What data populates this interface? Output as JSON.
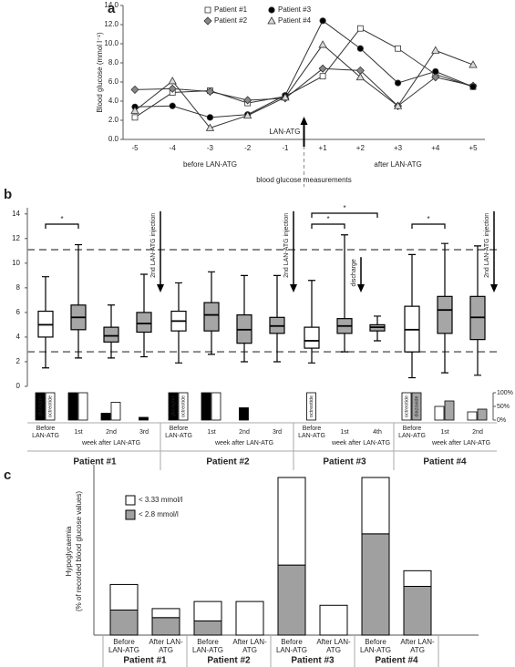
{
  "chart_data": [
    {
      "type": "line",
      "panel": "a",
      "ylabel": "Blood glucose (mmol l⁻¹)",
      "xlabel": "blood glucose measurements",
      "categories": [
        "-5",
        "-4",
        "-3",
        "-2",
        "-1",
        "+1",
        "+2",
        "+3",
        "+4",
        "+5"
      ],
      "phases": [
        "before LAN-ATG",
        "after LAN-ATG"
      ],
      "event": "LAN-ATG",
      "ylim": [
        0,
        14
      ],
      "yticks": [
        {
          "value": 0,
          "label": "0.0"
        },
        {
          "value": 2,
          "label": "2.0"
        },
        {
          "value": 4,
          "label": "4.0"
        },
        {
          "value": 6,
          "label": "6.0"
        },
        {
          "value": 8,
          "label": "8.0"
        },
        {
          "value": 10,
          "label": "10.0"
        },
        {
          "value": 12,
          "label": "12.0"
        },
        {
          "value": 14,
          "label": "14.0"
        }
      ],
      "grid": false,
      "legend": "top",
      "series": [
        {
          "name": "Patient #1",
          "marker": "square",
          "color": "#ffffff",
          "values": [
            2.3,
            4.9,
            5.1,
            3.8,
            4.5,
            6.6,
            11.6,
            9.5,
            6.8,
            5.5
          ]
        },
        {
          "name": "Patient #2",
          "marker": "diamond",
          "color": "#888888",
          "values": [
            5.2,
            5.3,
            5.0,
            4.1,
            4.3,
            7.4,
            7.2,
            3.5,
            6.5,
            5.6
          ]
        },
        {
          "name": "Patient #3",
          "marker": "circle",
          "color": "#000000",
          "values": [
            3.4,
            3.5,
            2.3,
            2.6,
            4.6,
            12.4,
            9.5,
            5.9,
            7.1,
            5.5
          ]
        },
        {
          "name": "Patient #4",
          "marker": "triangle",
          "color": "#d9d9d9",
          "values": [
            3.0,
            6.1,
            1.2,
            2.5,
            4.4,
            9.9,
            6.5,
            3.5,
            9.3,
            7.8
          ]
        }
      ]
    },
    {
      "type": "box",
      "panel": "b",
      "ylim": [
        0,
        14.5
      ],
      "yticks": [
        0,
        2,
        4,
        6,
        8,
        10,
        12,
        14
      ],
      "reference_lines": [
        11.1,
        2.8
      ],
      "groups": [
        {
          "name": "Patient #1",
          "categories": [
            "Before LAN-ATG",
            "1st",
            "2nd",
            "3rd"
          ],
          "period": "week after LAN-ATG",
          "boxes": [
            {
              "min": 1.5,
              "q1": 4.0,
              "median": 5.0,
              "q3": 6.1,
              "max": 8.9
            },
            {
              "min": 2.3,
              "q1": 4.6,
              "median": 5.6,
              "q3": 6.6,
              "max": 11.5
            },
            {
              "min": 2.3,
              "q1": 3.6,
              "median": 4.1,
              "q3": 4.8,
              "max": 6.6
            },
            {
              "min": 2.4,
              "q1": 4.4,
              "median": 5.1,
              "q3": 6.0,
              "max": 9.1
            }
          ],
          "significance": [
            {
              "label": "*",
              "between": [
                0,
                1
              ]
            }
          ],
          "events": [
            {
              "text": "2nd LAN-ATG injection",
              "after": 3
            }
          ]
        },
        {
          "name": "Patient #2",
          "categories": [
            "Before LAN-ATG",
            "1st",
            "2nd",
            "3rd"
          ],
          "period": "week after LAN-ATG",
          "boxes": [
            {
              "min": 1.9,
              "q1": 4.5,
              "median": 5.3,
              "q3": 6.1,
              "max": 8.4
            },
            {
              "min": 2.6,
              "q1": 4.5,
              "median": 5.8,
              "q3": 6.8,
              "max": 9.3
            },
            {
              "min": 2.0,
              "q1": 3.5,
              "median": 4.6,
              "q3": 5.8,
              "max": 9.0
            },
            {
              "min": 2.0,
              "q1": 4.3,
              "median": 4.9,
              "q3": 5.6,
              "max": 9.0
            }
          ],
          "significance": [],
          "events": [
            {
              "text": "2nd LAN-ATG injection",
              "after": 3
            }
          ]
        },
        {
          "name": "Patient #3",
          "categories": [
            "Before LAN-ATG",
            "1st",
            "4th"
          ],
          "period": "week after LAN-ATG",
          "boxes": [
            {
              "min": 1.9,
              "q1": 3.1,
              "median": 3.7,
              "q3": 4.8,
              "max": 8.6
            },
            {
              "min": 2.8,
              "q1": 4.3,
              "median": 4.9,
              "q3": 5.5,
              "max": 12.3
            },
            {
              "min": 3.7,
              "q1": 4.5,
              "median": 4.8,
              "q3": 5.0,
              "max": 5.7
            }
          ],
          "significance": [
            {
              "label": "*",
              "between": [
                0,
                1
              ]
            },
            {
              "label": "*",
              "between": [
                0,
                2
              ]
            }
          ],
          "events": [
            {
              "text": "discharge",
              "after": 1
            }
          ]
        },
        {
          "name": "Patient #4",
          "categories": [
            "Before LAN-ATG",
            "1st",
            "2nd"
          ],
          "period": "week after LAN-ATG",
          "boxes": [
            {
              "min": 0.7,
              "q1": 2.8,
              "median": 4.6,
              "q3": 6.5,
              "max": 10.7
            },
            {
              "min": 1.1,
              "q1": 4.3,
              "median": 6.2,
              "q3": 7.3,
              "max": 11.6
            },
            {
              "min": 0.9,
              "q1": 3.8,
              "median": 5.6,
              "q3": 7.3,
              "max": 11.4
            }
          ],
          "significance": [
            {
              "label": "*",
              "between": [
                0,
                1
              ]
            }
          ],
          "events": [
            {
              "text": "2nd LAN-ATG injection",
              "after": 2
            }
          ]
        }
      ],
      "treatment": {
        "y2lim": [
          0,
          100
        ],
        "y2ticks": [
          {
            "value": 100,
            "label": "100%"
          },
          {
            "value": 50,
            "label": "50%"
          },
          {
            "value": 0,
            "label": "0%"
          }
        ],
        "series": [
          {
            "name": "glucagon",
            "color": "#000000",
            "values": [
              100,
              100,
              25,
              10,
              100,
              100,
              45,
              null,
              null,
              null,
              null,
              null,
              null,
              null
            ]
          },
          {
            "name": "octreotide",
            "color": "#ffffff",
            "values": [
              100,
              100,
              65,
              null,
              100,
              100,
              null,
              null,
              100,
              null,
              null,
              100,
              50,
              30
            ]
          },
          {
            "name": "diazoxide",
            "color": "#a6a6a6",
            "values": [
              null,
              null,
              null,
              null,
              null,
              null,
              null,
              null,
              null,
              null,
              null,
              100,
              70,
              40
            ]
          }
        ]
      }
    },
    {
      "type": "stacked_bar",
      "panel": "c",
      "ylabel": [
        "Hypoglycaemia",
        "(% of recorded blood glucose values)"
      ],
      "ylim": [
        0,
        36
      ],
      "groups": [
        {
          "name": "Patient #1",
          "categories": [
            "Before LAN-ATG",
            "After LAN-ATG"
          ]
        },
        {
          "name": "Patient #2",
          "categories": [
            "Before LAN-ATG",
            "After LAN-ATG"
          ]
        },
        {
          "name": "Patient #3",
          "categories": [
            "Before LAN-ATG",
            "After LAN-ATG"
          ]
        },
        {
          "name": "Patient #4",
          "categories": [
            "Before LAN-ATG",
            "After LAN-ATG"
          ]
        }
      ],
      "series": [
        {
          "name": "< 3.33 mmol/l",
          "color": "#ffffff",
          "values": [
            5.4,
            1.9,
            4.1,
            7.1,
            18.5,
            6.3,
            11.9,
            3.3
          ]
        },
        {
          "name": "< 2.8 mmol/l",
          "color": "#a0a0a0",
          "values": [
            5.3,
            3.7,
            3.0,
            0,
            14.8,
            0,
            21.4,
            10.3
          ]
        }
      ]
    }
  ]
}
